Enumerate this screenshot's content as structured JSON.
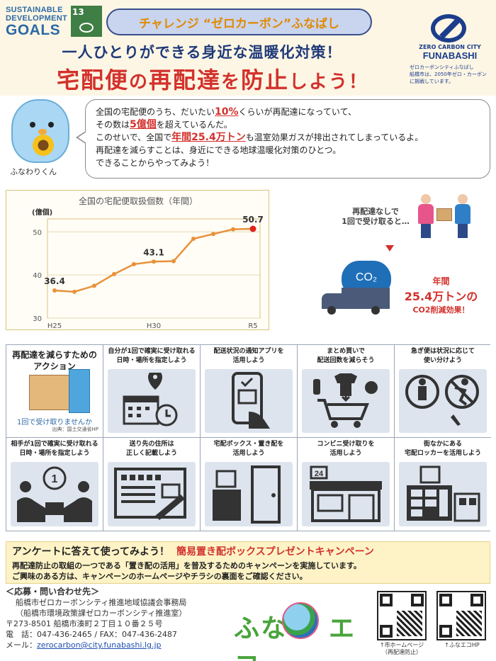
{
  "header": {
    "sdg_line1": "SUSTAINABLE",
    "sdg_line2": "DEVELOPMENT",
    "sdg_line3": "GOALS",
    "sdg_goal_number": "13",
    "challenge": "チャレンジ “ゼロカーボン”ふなばし",
    "subtitle": "一人ひとりができる身近な温暖化対策！",
    "title_a": "宅配便",
    "title_b": "の",
    "title_c": "再配達",
    "title_d": "を",
    "title_e": "防止",
    "title_f": "しよう！",
    "zcc_line1": "ZERO CARBON CITY",
    "zcc_line2": "FUNABASHI",
    "zcc_sub1": "ゼロカーボンシティふなばし",
    "zcc_sub2": "船橋市は、2050年ゼロ・カーボンに挑戦しています。"
  },
  "mascot": {
    "name": "ふなわりくん"
  },
  "bubble": {
    "l1_a": "全国の宅配便のうち、だいたい",
    "l1_b": "10%",
    "l1_c": "くらいが再配達になっていて、",
    "l2_a": "その数は",
    "l2_b": "5億個",
    "l2_c": "を超えているんだ。",
    "l3_a": "このせいで、全国で",
    "l3_b": "年間25.4万トン",
    "l3_c": "も温室効果ガスが排出されてしまっているよ。",
    "l4": "再配達を減らすことは、身近にできる地球温暖化対策のひとつ。",
    "l5": "できることからやってみよう！"
  },
  "chart_data": {
    "type": "line",
    "title": "全国の宅配便取扱個数（年間）",
    "ylabel": "(億個)",
    "x_tick_labels": [
      "H25",
      "H30",
      "R5"
    ],
    "y_tick_labels": [
      "30",
      "40",
      "50"
    ],
    "ylim": [
      30,
      53
    ],
    "x": [
      "H25",
      "H26",
      "H27",
      "H28",
      "H29",
      "H30",
      "R1",
      "R2",
      "R3",
      "R4",
      "R5"
    ],
    "values": [
      36.4,
      36.1,
      37.5,
      40.2,
      42.5,
      43.1,
      43.2,
      48.4,
      49.5,
      50.6,
      50.7
    ],
    "data_labels": [
      {
        "index": 0,
        "text": "36.4"
      },
      {
        "index": 5,
        "text": "43.1"
      },
      {
        "index": 10,
        "text": "50.7"
      }
    ],
    "grid": true,
    "colors": {
      "line": "#e8913a",
      "last_point": "#e2231a"
    }
  },
  "effect": {
    "line1": "再配達なしで",
    "line2": "1回で受け取ると…",
    "co2": "CO₂",
    "r1": "年間",
    "r2": "25.4万トンの",
    "r3": "CO2削減効果！"
  },
  "actions": {
    "heading1": "再配達を減らすための",
    "heading2": "アクション",
    "pic_caption": "1回で受け取りませんか",
    "source": "出典：国土交通省HP",
    "items": [
      {
        "l1": "自分が1回で確実に受け取れる",
        "l2": "日時・場所を指定しよう",
        "icon": "calendar-icon"
      },
      {
        "l1": "配送状況の通知アプリを",
        "l2": "活用しよう",
        "icon": "smartphone-icon"
      },
      {
        "l1": "まとめ買いで",
        "l2": "配送回数を減らそう",
        "icon": "shopping-cart-icon"
      },
      {
        "l1": "急ぎ便は状況に応じて",
        "l2": "使い分けよう",
        "icon": "express-icon"
      },
      {
        "l1": "相手が1回で確実に受け取れる",
        "l2": "日時・場所を指定しよう",
        "icon": "handover-icon"
      },
      {
        "l1": "送り先の住所は",
        "l2": "正しく記載しよう",
        "icon": "address-form-icon"
      },
      {
        "l1": "宅配ボックス・置き配を",
        "l2": "活用しよう",
        "icon": "delivery-box-icon"
      },
      {
        "l1": "コンビニ受け取りを",
        "l2": "活用しよう",
        "icon": "convenience-store-icon"
      },
      {
        "l1": "街なかにある",
        "l2": "宅配ロッカーを活用しよう",
        "icon": "parcel-locker-icon"
      }
    ]
  },
  "campaign": {
    "head": "アンケートに答えて使ってみよう！",
    "highlight": "簡易置き配ボックスプレゼントキャンペーン",
    "body1": "再配達防止の取組の一つである「置き配の活用」を普及するためのキャンペーンを実施しています。",
    "body2": "ご興味のある方は、キャンペーンのホームページやチラシの裏面をご確認ください。"
  },
  "contact": {
    "head": "＜応募・問い合わせ先＞",
    "org1": "船橋市ゼロカーボンシティ推進地域協議会事務局",
    "org2": "（船橋市環境政策課ゼロカーボンシティ推進室）",
    "address": "〒273-8501 船橋市湊町２丁目１０番２５号",
    "phone": "電　話：047-436-2465 / FAX：047-436-2487",
    "mail_label": "メール：",
    "mail": "zerocarbon@city.funabashi.lg.jp"
  },
  "funa_eco": {
    "text_a": "ふな",
    "text_b": "エコ"
  },
  "qr": {
    "cap1_a": "↑市ホームページ",
    "cap1_b": "（再配達防止）",
    "cap2": "↑ふなエコHP"
  }
}
